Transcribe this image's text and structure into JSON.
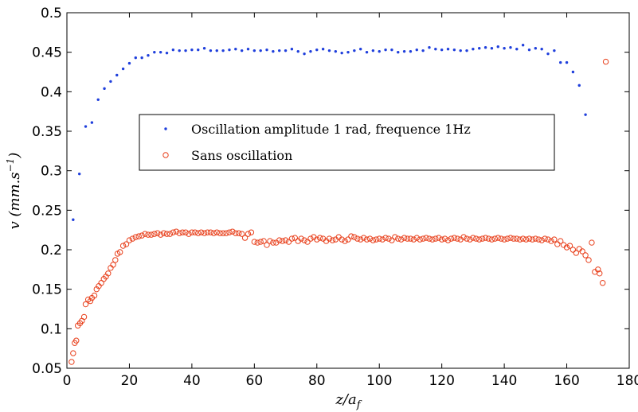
{
  "chart_data": {
    "type": "scatter",
    "xlim": [
      0,
      180
    ],
    "ylim": [
      0.05,
      0.5
    ],
    "x_ticks": [
      "0",
      "20",
      "40",
      "60",
      "80",
      "100",
      "120",
      "140",
      "160",
      "180"
    ],
    "y_ticks": [
      "0.05",
      "0.1",
      "0.15",
      "0.2",
      "0.25",
      "0.3",
      "0.35",
      "0.4",
      "0.45",
      "0.5"
    ],
    "xlabel": "z/a_f",
    "ylabel": "v (mm.s^-1)",
    "grid": false,
    "legend_position": "center",
    "series": [
      {
        "name": "Oscillation amplitude 1 rad, frequence 1Hz",
        "marker": "dot",
        "color": "#1f3fdc",
        "points": [
          [
            2,
            0.238
          ],
          [
            4,
            0.296
          ],
          [
            6,
            0.356
          ],
          [
            8,
            0.361
          ],
          [
            10,
            0.39
          ],
          [
            12,
            0.404
          ],
          [
            14,
            0.413
          ],
          [
            16,
            0.421
          ],
          [
            18,
            0.429
          ],
          [
            20,
            0.436
          ],
          [
            22,
            0.443
          ],
          [
            24,
            0.443
          ],
          [
            26,
            0.446
          ],
          [
            28,
            0.45
          ],
          [
            30,
            0.45
          ],
          [
            32,
            0.449
          ],
          [
            34,
            0.453
          ],
          [
            36,
            0.452
          ],
          [
            38,
            0.452
          ],
          [
            40,
            0.453
          ],
          [
            42,
            0.453
          ],
          [
            44,
            0.455
          ],
          [
            46,
            0.452
          ],
          [
            48,
            0.452
          ],
          [
            50,
            0.452
          ],
          [
            52,
            0.453
          ],
          [
            54,
            0.454
          ],
          [
            56,
            0.452
          ],
          [
            58,
            0.454
          ],
          [
            60,
            0.452
          ],
          [
            62,
            0.452
          ],
          [
            64,
            0.453
          ],
          [
            66,
            0.451
          ],
          [
            68,
            0.452
          ],
          [
            70,
            0.452
          ],
          [
            72,
            0.454
          ],
          [
            74,
            0.451
          ],
          [
            76,
            0.448
          ],
          [
            78,
            0.451
          ],
          [
            80,
            0.453
          ],
          [
            82,
            0.454
          ],
          [
            84,
            0.452
          ],
          [
            86,
            0.451
          ],
          [
            88,
            0.449
          ],
          [
            90,
            0.45
          ],
          [
            92,
            0.452
          ],
          [
            94,
            0.454
          ],
          [
            96,
            0.45
          ],
          [
            98,
            0.452
          ],
          [
            100,
            0.451
          ],
          [
            102,
            0.453
          ],
          [
            104,
            0.453
          ],
          [
            106,
            0.45
          ],
          [
            108,
            0.451
          ],
          [
            110,
            0.451
          ],
          [
            112,
            0.453
          ],
          [
            114,
            0.452
          ],
          [
            116,
            0.456
          ],
          [
            118,
            0.454
          ],
          [
            120,
            0.453
          ],
          [
            122,
            0.454
          ],
          [
            124,
            0.453
          ],
          [
            126,
            0.452
          ],
          [
            128,
            0.452
          ],
          [
            130,
            0.454
          ],
          [
            132,
            0.455
          ],
          [
            134,
            0.456
          ],
          [
            136,
            0.455
          ],
          [
            138,
            0.457
          ],
          [
            140,
            0.455
          ],
          [
            142,
            0.456
          ],
          [
            144,
            0.454
          ],
          [
            146,
            0.459
          ],
          [
            148,
            0.453
          ],
          [
            150,
            0.455
          ],
          [
            152,
            0.454
          ],
          [
            154,
            0.448
          ],
          [
            156,
            0.452
          ],
          [
            158,
            0.437
          ],
          [
            160,
            0.437
          ],
          [
            162,
            0.425
          ],
          [
            164,
            0.408
          ],
          [
            166,
            0.371
          ]
        ]
      },
      {
        "name": "Sans oscillation",
        "marker": "circle",
        "color": "#e8401c",
        "points": [
          [
            1.5,
            0.058
          ],
          [
            2,
            0.069
          ],
          [
            2.5,
            0.082
          ],
          [
            3,
            0.085
          ],
          [
            3.5,
            0.104
          ],
          [
            4.2,
            0.107
          ],
          [
            4.8,
            0.11
          ],
          [
            5.5,
            0.115
          ],
          [
            6,
            0.131
          ],
          [
            6.8,
            0.137
          ],
          [
            7.5,
            0.135
          ],
          [
            8,
            0.139
          ],
          [
            8.8,
            0.142
          ],
          [
            9.5,
            0.15
          ],
          [
            10.2,
            0.154
          ],
          [
            11,
            0.158
          ],
          [
            11.8,
            0.163
          ],
          [
            12.5,
            0.166
          ],
          [
            13.2,
            0.17
          ],
          [
            14,
            0.177
          ],
          [
            14.8,
            0.181
          ],
          [
            15.5,
            0.187
          ],
          [
            16.2,
            0.195
          ],
          [
            17,
            0.197
          ],
          [
            18,
            0.205
          ],
          [
            19,
            0.207
          ],
          [
            20,
            0.212
          ],
          [
            21,
            0.214
          ],
          [
            22,
            0.216
          ],
          [
            23,
            0.217
          ],
          [
            24,
            0.218
          ],
          [
            25,
            0.22
          ],
          [
            26,
            0.219
          ],
          [
            27,
            0.219
          ],
          [
            28,
            0.22
          ],
          [
            29,
            0.221
          ],
          [
            30,
            0.219
          ],
          [
            31,
            0.221
          ],
          [
            32,
            0.22
          ],
          [
            33,
            0.22
          ],
          [
            34,
            0.222
          ],
          [
            35,
            0.223
          ],
          [
            36,
            0.221
          ],
          [
            37,
            0.222
          ],
          [
            38,
            0.222
          ],
          [
            39,
            0.22
          ],
          [
            40,
            0.222
          ],
          [
            41,
            0.222
          ],
          [
            42,
            0.221
          ],
          [
            43,
            0.222
          ],
          [
            44,
            0.221
          ],
          [
            45,
            0.222
          ],
          [
            46,
            0.222
          ],
          [
            47,
            0.221
          ],
          [
            48,
            0.222
          ],
          [
            49,
            0.221
          ],
          [
            50,
            0.221
          ],
          [
            51,
            0.221
          ],
          [
            52,
            0.222
          ],
          [
            53,
            0.223
          ],
          [
            54,
            0.221
          ],
          [
            55,
            0.221
          ],
          [
            56,
            0.22
          ],
          [
            57,
            0.215
          ],
          [
            58,
            0.22
          ],
          [
            59,
            0.222
          ],
          [
            60,
            0.21
          ],
          [
            61,
            0.209
          ],
          [
            62,
            0.21
          ],
          [
            63,
            0.211
          ],
          [
            64,
            0.206
          ],
          [
            65,
            0.211
          ],
          [
            66,
            0.209
          ],
          [
            67,
            0.209
          ],
          [
            68,
            0.212
          ],
          [
            69,
            0.211
          ],
          [
            70,
            0.212
          ],
          [
            71,
            0.21
          ],
          [
            72,
            0.214
          ],
          [
            73,
            0.215
          ],
          [
            74,
            0.211
          ],
          [
            75,
            0.214
          ],
          [
            76,
            0.212
          ],
          [
            77,
            0.21
          ],
          [
            78,
            0.214
          ],
          [
            79,
            0.216
          ],
          [
            80,
            0.213
          ],
          [
            81,
            0.215
          ],
          [
            82,
            0.214
          ],
          [
            83,
            0.211
          ],
          [
            84,
            0.214
          ],
          [
            85,
            0.212
          ],
          [
            86,
            0.213
          ],
          [
            87,
            0.216
          ],
          [
            88,
            0.213
          ],
          [
            89,
            0.211
          ],
          [
            90,
            0.213
          ],
          [
            91,
            0.217
          ],
          [
            92,
            0.216
          ],
          [
            93,
            0.214
          ],
          [
            94,
            0.213
          ],
          [
            95,
            0.215
          ],
          [
            96,
            0.213
          ],
          [
            97,
            0.214
          ],
          [
            98,
            0.212
          ],
          [
            99,
            0.213
          ],
          [
            100,
            0.214
          ],
          [
            101,
            0.213
          ],
          [
            102,
            0.215
          ],
          [
            103,
            0.214
          ],
          [
            104,
            0.212
          ],
          [
            105,
            0.216
          ],
          [
            106,
            0.214
          ],
          [
            107,
            0.213
          ],
          [
            108,
            0.215
          ],
          [
            109,
            0.214
          ],
          [
            110,
            0.214
          ],
          [
            111,
            0.213
          ],
          [
            112,
            0.215
          ],
          [
            113,
            0.213
          ],
          [
            114,
            0.214
          ],
          [
            115,
            0.215
          ],
          [
            116,
            0.214
          ],
          [
            117,
            0.213
          ],
          [
            118,
            0.214
          ],
          [
            119,
            0.215
          ],
          [
            120,
            0.213
          ],
          [
            121,
            0.214
          ],
          [
            122,
            0.212
          ],
          [
            123,
            0.214
          ],
          [
            124,
            0.215
          ],
          [
            125,
            0.214
          ],
          [
            126,
            0.213
          ],
          [
            127,
            0.216
          ],
          [
            128,
            0.214
          ],
          [
            129,
            0.213
          ],
          [
            130,
            0.215
          ],
          [
            131,
            0.214
          ],
          [
            132,
            0.213
          ],
          [
            133,
            0.214
          ],
          [
            134,
            0.215
          ],
          [
            135,
            0.214
          ],
          [
            136,
            0.213
          ],
          [
            137,
            0.214
          ],
          [
            138,
            0.215
          ],
          [
            139,
            0.214
          ],
          [
            140,
            0.213
          ],
          [
            141,
            0.214
          ],
          [
            142,
            0.215
          ],
          [
            143,
            0.214
          ],
          [
            144,
            0.214
          ],
          [
            145,
            0.213
          ],
          [
            146,
            0.214
          ],
          [
            147,
            0.213
          ],
          [
            148,
            0.214
          ],
          [
            149,
            0.213
          ],
          [
            150,
            0.214
          ],
          [
            151,
            0.213
          ],
          [
            152,
            0.212
          ],
          [
            153,
            0.214
          ],
          [
            154,
            0.213
          ],
          [
            155,
            0.211
          ],
          [
            156,
            0.213
          ],
          [
            157,
            0.207
          ],
          [
            158,
            0.211
          ],
          [
            159,
            0.206
          ],
          [
            160,
            0.203
          ],
          [
            161,
            0.205
          ],
          [
            162,
            0.2
          ],
          [
            163,
            0.196
          ],
          [
            164,
            0.201
          ],
          [
            165,
            0.198
          ],
          [
            166,
            0.193
          ],
          [
            167,
            0.187
          ],
          [
            168,
            0.209
          ],
          [
            169,
            0.172
          ],
          [
            170,
            0.175
          ],
          [
            170.5,
            0.17
          ],
          [
            171.5,
            0.158
          ],
          [
            172.5,
            0.438
          ]
        ]
      }
    ]
  }
}
